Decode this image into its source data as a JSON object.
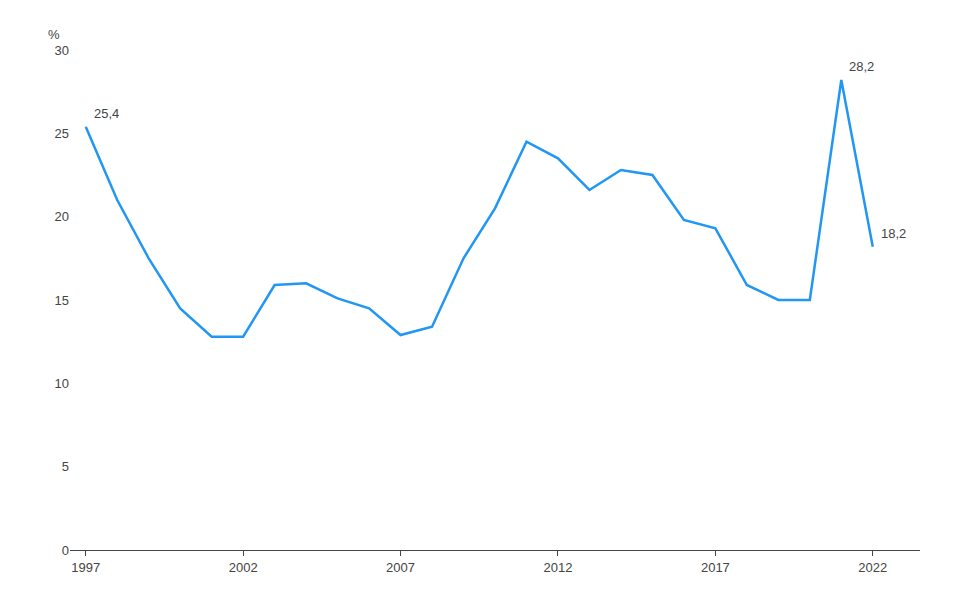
{
  "chart_data": {
    "type": "line",
    "x": [
      1997,
      1998,
      1999,
      2000,
      2001,
      2002,
      2003,
      2004,
      2005,
      2006,
      2007,
      2008,
      2009,
      2010,
      2011,
      2012,
      2013,
      2014,
      2015,
      2016,
      2017,
      2018,
      2019,
      2020,
      2021,
      2022
    ],
    "values": [
      25.4,
      21.0,
      17.5,
      14.5,
      12.8,
      12.8,
      15.9,
      16.0,
      15.1,
      14.5,
      12.9,
      13.4,
      17.5,
      20.5,
      24.5,
      23.5,
      21.6,
      22.8,
      22.5,
      19.8,
      19.3,
      15.9,
      15.0,
      15.0,
      28.2,
      18.2
    ],
    "color": "#2196F3",
    "annotations": [
      {
        "x": 1997,
        "y": 25.4,
        "label": "25,4"
      },
      {
        "x": 2021,
        "y": 28.2,
        "label": "28,2"
      },
      {
        "x": 2022,
        "y": 18.2,
        "label": "18,2"
      }
    ],
    "ylabel": "%",
    "ylim": [
      0,
      30
    ],
    "yticks": [
      0,
      5,
      10,
      15,
      20,
      25,
      30
    ],
    "xlim": [
      1996.5,
      2023.5
    ],
    "xticks": [
      1997,
      2002,
      2007,
      2012,
      2017,
      2022
    ],
    "grid": false
  }
}
